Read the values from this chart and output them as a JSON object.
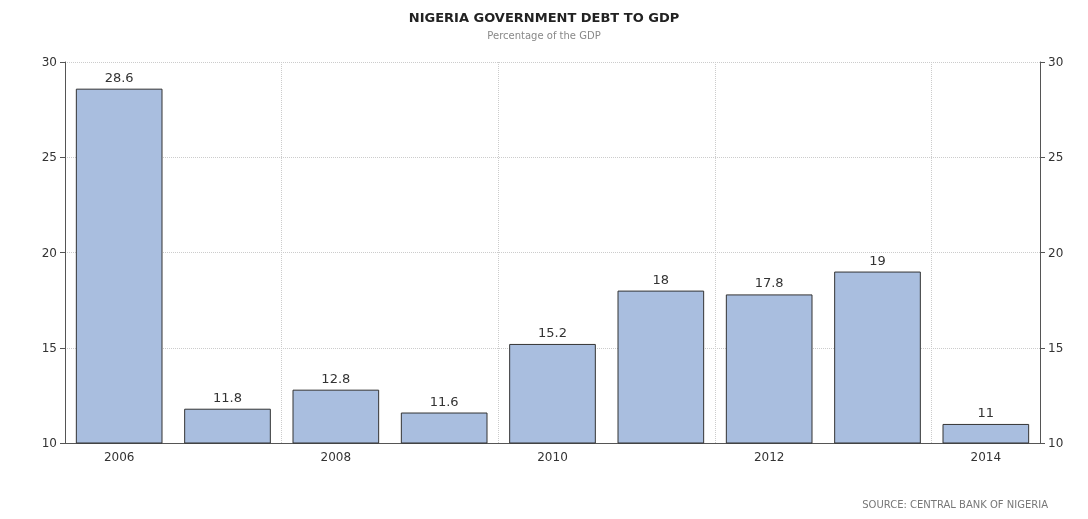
{
  "chart_data": {
    "type": "bar",
    "title": "NIGERIA GOVERNMENT DEBT TO GDP",
    "subtitle": "Percentage of the GDP",
    "categories": [
      "2006",
      null,
      "2008",
      null,
      "2010",
      null,
      "2012",
      null,
      "2014"
    ],
    "values": [
      28.6,
      11.8,
      12.8,
      11.6,
      15.2,
      18,
      17.8,
      19,
      11
    ],
    "color": "#a9bedf",
    "ylim": [
      10,
      30
    ],
    "yticks": [
      10,
      15,
      20,
      25,
      30
    ],
    "y2lim": [
      10,
      30
    ],
    "y2ticks": [
      10,
      15,
      20,
      25,
      30
    ],
    "grid": true,
    "data_labels": true,
    "annotations": [
      "SOURCE: CENTRAL BANK OF NIGERIA"
    ]
  }
}
